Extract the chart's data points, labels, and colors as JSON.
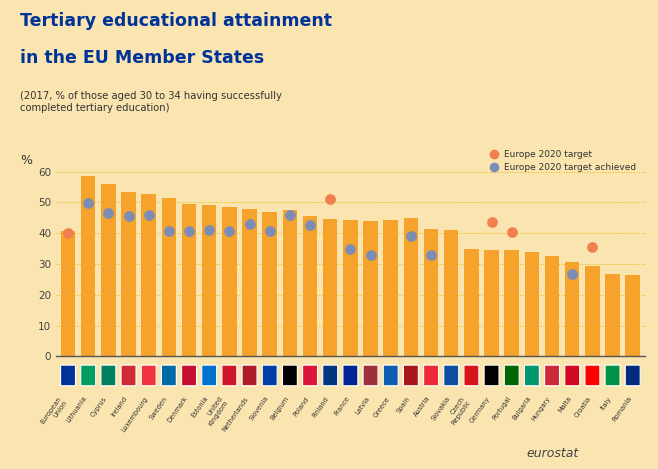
{
  "title_line1": "Tertiary educational attainment",
  "title_line2": "in the EU Member States",
  "subtitle": "(2017, % of those aged 30 to 34 having successfully\ncompleted tertiary education)",
  "ylabel": "%",
  "background_color": "#FAE5B0",
  "bar_color": "#F5A32A",
  "target_dot_color": "#F08050",
  "achieved_dot_color": "#7B8DB5",
  "countries": [
    "European\nUnion",
    "Lithuania",
    "Cyprus",
    "Ireland",
    "Luxembourg",
    "Sweden",
    "Denmark",
    "Estonia",
    "United\nKingdom",
    "Netherlands",
    "Slovenia",
    "Belgium",
    "Poland",
    "Finland",
    "France",
    "Latvia",
    "Greece",
    "Spain",
    "Austria",
    "Slovakia",
    "Czech\nRepublic",
    "Germany",
    "Portugal",
    "Bulgaria",
    "Hungary",
    "Malta",
    "Croatia",
    "Italy",
    "Romania"
  ],
  "bar_values": [
    40.7,
    58.7,
    55.9,
    53.5,
    52.7,
    51.3,
    49.6,
    49.2,
    48.5,
    47.9,
    46.9,
    47.6,
    45.7,
    44.6,
    44.4,
    43.8,
    44.2,
    45.0,
    41.4,
    40.9,
    34.8,
    34.6,
    34.6,
    33.8,
    32.7,
    30.5,
    29.2,
    26.9,
    26.3
  ],
  "target_values": [
    40.0,
    null,
    null,
    null,
    null,
    null,
    null,
    null,
    null,
    null,
    null,
    null,
    null,
    51.0,
    null,
    null,
    null,
    null,
    null,
    null,
    null,
    43.5,
    40.5,
    null,
    null,
    null,
    35.5,
    null,
    null
  ],
  "achieved_values": [
    null,
    49.8,
    46.7,
    45.5,
    45.8,
    40.8,
    40.8,
    40.9,
    40.7,
    43.1,
    40.8,
    45.8,
    42.7,
    null,
    35.0,
    32.9,
    null,
    39.2,
    33.0,
    null,
    null,
    null,
    null,
    null,
    null,
    26.8,
    null,
    null,
    null
  ],
  "ylim": [
    0,
    70
  ],
  "yticks": [
    0,
    10,
    20,
    30,
    40,
    50,
    60
  ],
  "legend_target_label": "Europe 2020 target",
  "legend_achieved_label": "Europe 2020 target achieved",
  "eurostat_text": "eurostat",
  "title_color": "#003399",
  "grid_color": "#E8B800",
  "orange_band_color": "#F5A32A",
  "flag_colors": [
    "#003399",
    "#009E60",
    "#007F5F",
    "#CE2B37",
    "#EF3340",
    "#006AA7",
    "#C60C30",
    "#0072CE",
    "#CF142B",
    "#AE1C28",
    "#003DA5",
    "#000000",
    "#DC143C",
    "#003580",
    "#002395",
    "#9E3039",
    "#0D5EAF",
    "#AA151B",
    "#ED2939",
    "#0B4EA2",
    "#D7141A",
    "#000000",
    "#006600",
    "#00966E",
    "#CE2939",
    "#CF0921",
    "#FF0000",
    "#009246",
    "#002B7F"
  ]
}
